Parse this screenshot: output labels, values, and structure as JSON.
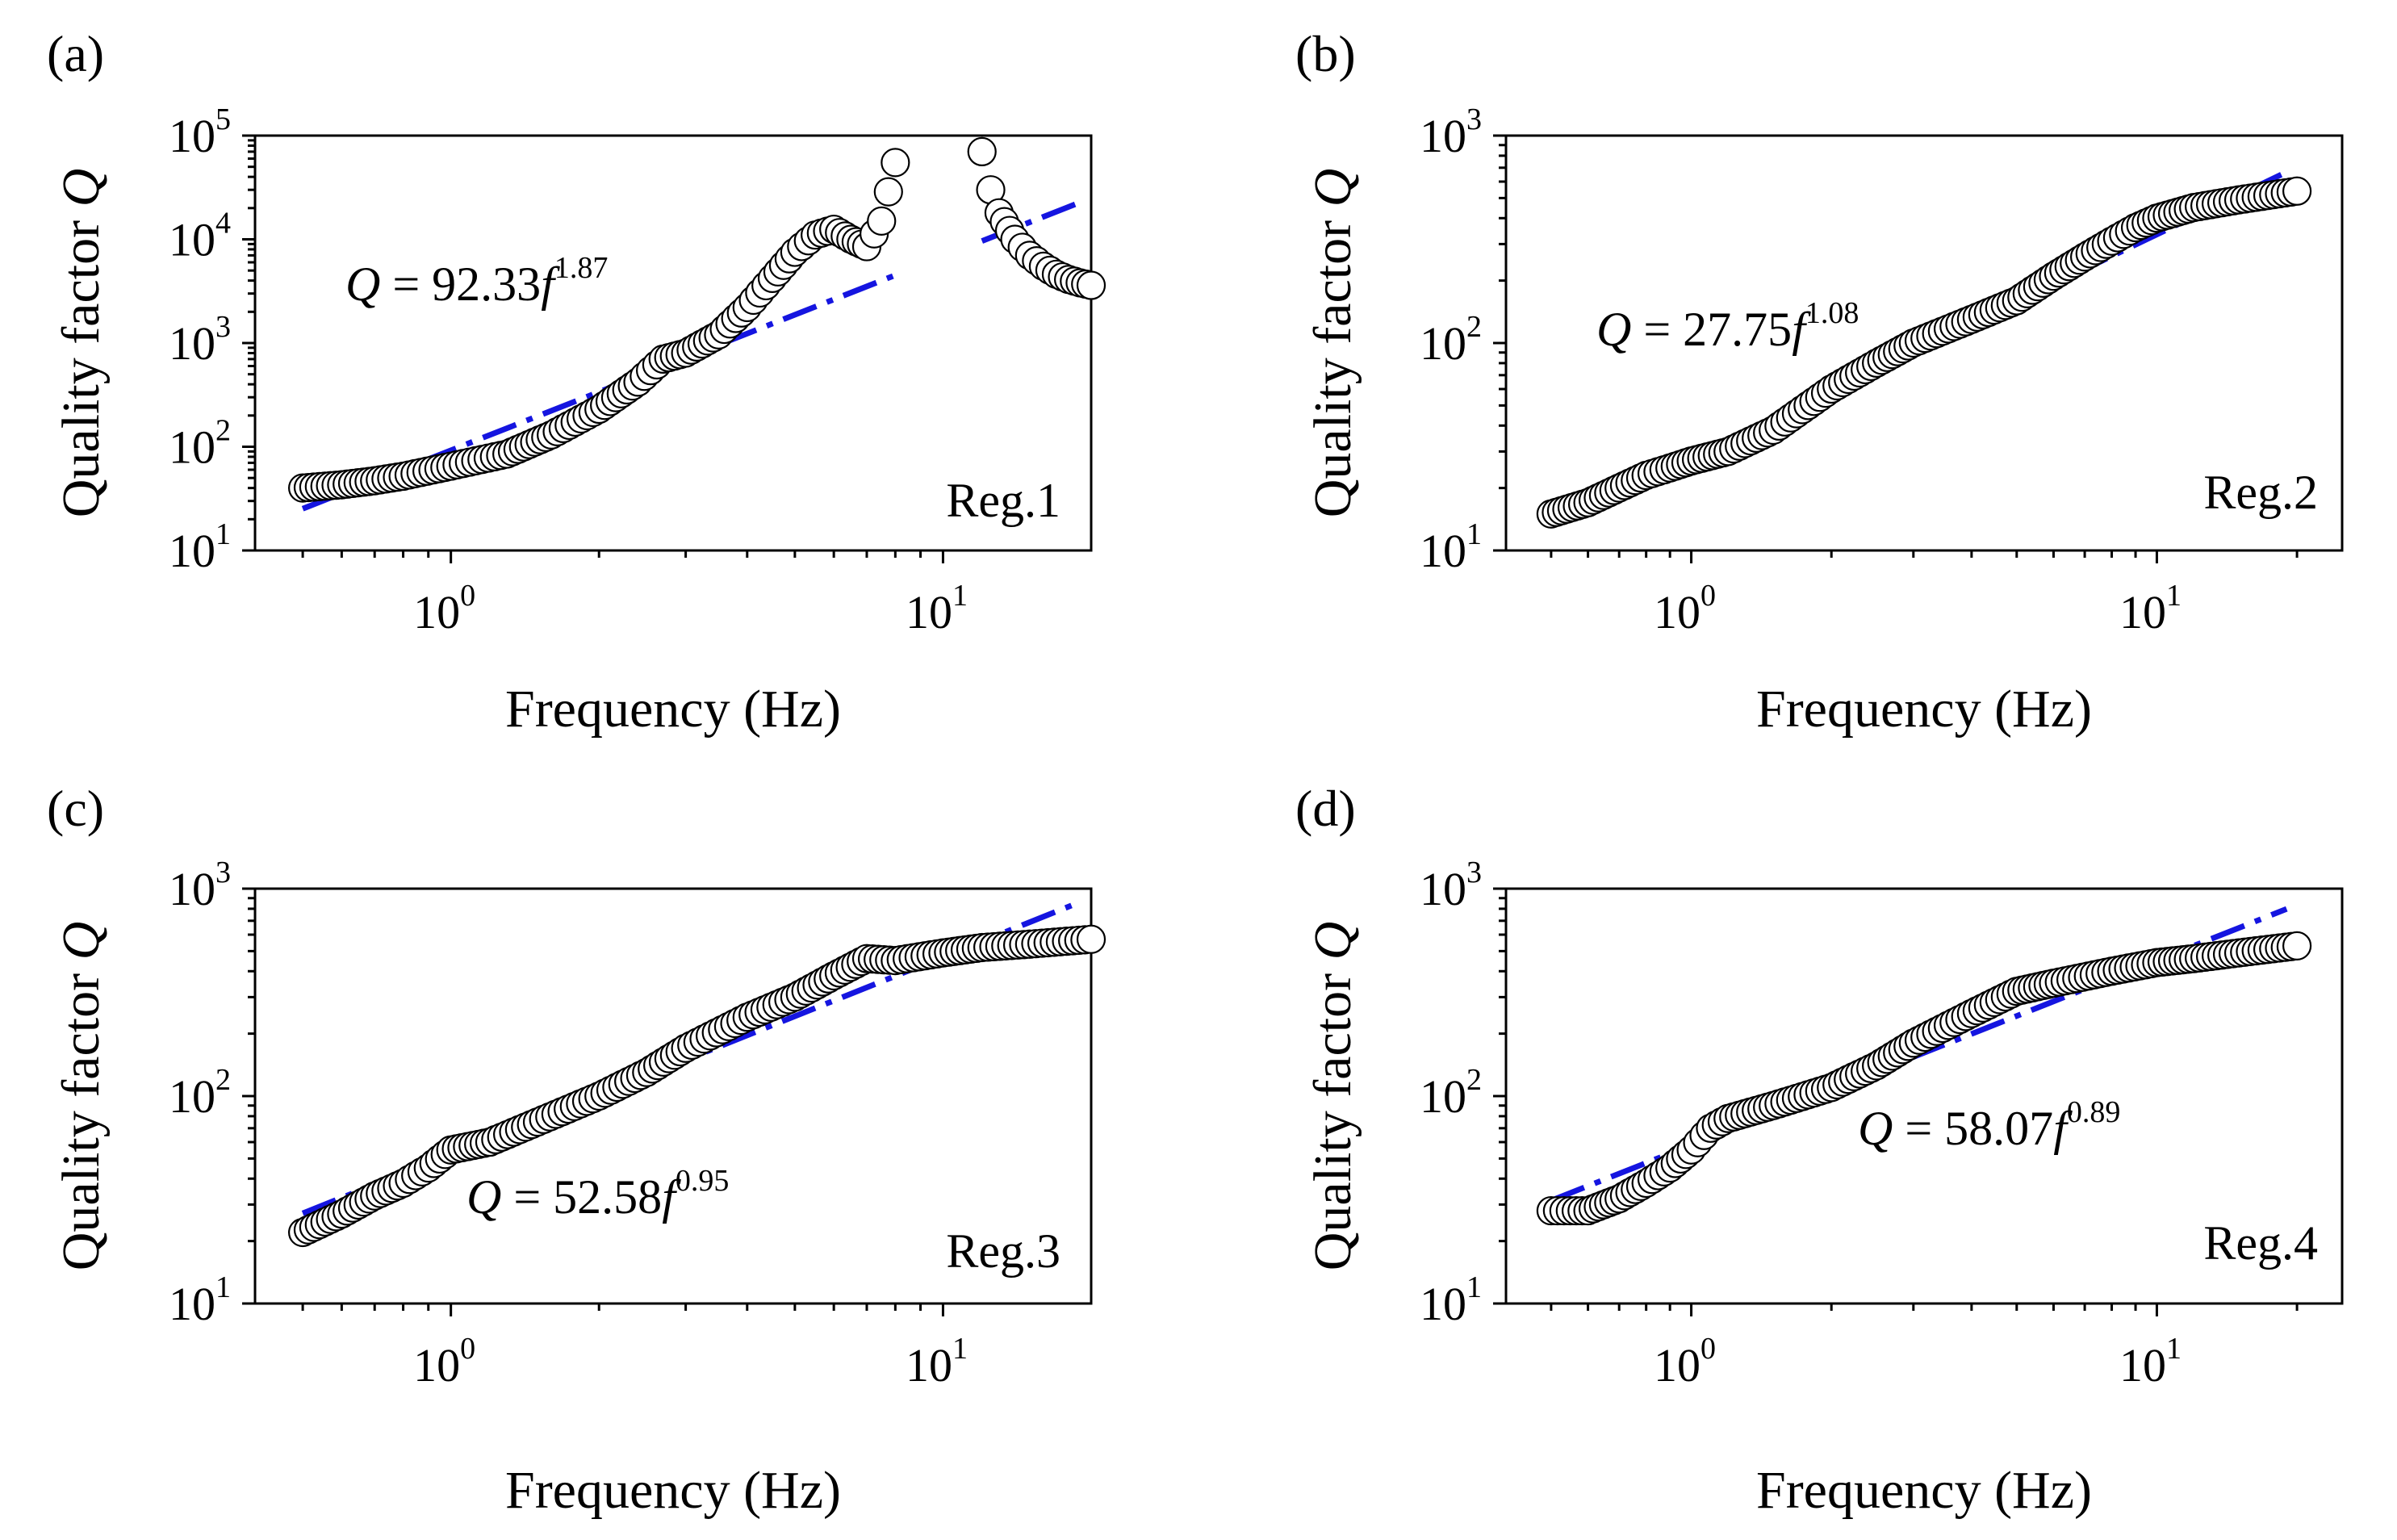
{
  "chart_data": [
    {
      "type": "scatter",
      "panel_label": "(a)",
      "region_label": "Reg.1",
      "xlabel": "Frequency (Hz)",
      "ylabel_prefix": "Quality factor ",
      "ylabel_symbol": "Q",
      "xscale": "log",
      "yscale": "log",
      "xlim": [
        0.4,
        20
      ],
      "ylim": [
        10,
        100000
      ],
      "x_ticks": [
        {
          "v": 1,
          "base": "10",
          "exp": "0"
        },
        {
          "v": 10,
          "base": "10",
          "exp": "1"
        }
      ],
      "y_ticks": [
        {
          "v": 10,
          "base": "10",
          "exp": "1"
        },
        {
          "v": 100,
          "base": "10",
          "exp": "2"
        },
        {
          "v": 1000,
          "base": "10",
          "exp": "3"
        },
        {
          "v": 10000,
          "base": "10",
          "exp": "4"
        },
        {
          "v": 100000,
          "base": "10",
          "exp": "5"
        }
      ],
      "equation": {
        "lhs": "Q",
        "mid": " = 92.33",
        "var": "f",
        "exp": "1.87"
      },
      "fit": {
        "a": 92.33,
        "b": 1.87,
        "segments": [
          [
            0.5,
            8.0
          ],
          [
            12.0,
            19.0
          ]
        ]
      },
      "series": [
        {
          "x": [
            0.5,
            0.6,
            0.7,
            0.8,
            1.0,
            1.3,
            1.6,
            2.0,
            2.4,
            2.7,
            3.0,
            3.5,
            4.0,
            4.5,
            5.0,
            5.5,
            6.0,
            6.5,
            7.0,
            7.5,
            8.0
          ],
          "y": [
            40,
            43,
            47,
            52,
            65,
            85,
            130,
            230,
            420,
            700,
            800,
            1200,
            2200,
            4200,
            7500,
            11000,
            12500,
            10000,
            8500,
            15000,
            55000
          ]
        },
        {
          "x": [
            12.0,
            12.5,
            13.0,
            14.0,
            15.0,
            16.0,
            17.0,
            18.0,
            19.0,
            20.0
          ],
          "y": [
            70000,
            30000,
            18000,
            10000,
            7000,
            5500,
            4600,
            4100,
            3800,
            3600
          ]
        }
      ]
    },
    {
      "type": "scatter",
      "panel_label": "(b)",
      "region_label": "Reg.2",
      "xlabel": "Frequency (Hz)",
      "ylabel_prefix": "Quality factor ",
      "ylabel_symbol": "Q",
      "xscale": "log",
      "yscale": "log",
      "xlim": [
        0.4,
        25
      ],
      "ylim": [
        10,
        1000
      ],
      "x_ticks": [
        {
          "v": 1,
          "base": "10",
          "exp": "0"
        },
        {
          "v": 10,
          "base": "10",
          "exp": "1"
        }
      ],
      "y_ticks": [
        {
          "v": 10,
          "base": "10",
          "exp": "1"
        },
        {
          "v": 100,
          "base": "10",
          "exp": "2"
        },
        {
          "v": 1000,
          "base": "10",
          "exp": "3"
        }
      ],
      "equation": {
        "lhs": "Q",
        "mid": " = 27.75",
        "var": "f",
        "exp": "1.08"
      },
      "fit": {
        "a": 27.75,
        "b": 1.08,
        "segments": [
          [
            0.5,
            19.0
          ]
        ]
      },
      "series": [
        {
          "x": [
            0.5,
            0.6,
            0.7,
            0.8,
            0.9,
            1.0,
            1.2,
            1.5,
            2.0,
            2.5,
            3.0,
            4.0,
            5.0,
            6.0,
            7.0,
            8.0,
            9.0,
            10.0,
            12.0,
            15.0,
            20.0
          ],
          "y": [
            15,
            17,
            20,
            23,
            25,
            27,
            30,
            38,
            60,
            80,
            100,
            130,
            160,
            210,
            260,
            310,
            360,
            400,
            450,
            490,
            540
          ]
        }
      ]
    },
    {
      "type": "scatter",
      "panel_label": "(c)",
      "region_label": "Reg.3",
      "xlabel": "Frequency (Hz)",
      "ylabel_prefix": "Quality factor ",
      "ylabel_symbol": "Q",
      "xscale": "log",
      "yscale": "log",
      "xlim": [
        0.4,
        20
      ],
      "ylim": [
        10,
        1000
      ],
      "x_ticks": [
        {
          "v": 1,
          "base": "10",
          "exp": "0"
        },
        {
          "v": 10,
          "base": "10",
          "exp": "1"
        }
      ],
      "y_ticks": [
        {
          "v": 10,
          "base": "10",
          "exp": "1"
        },
        {
          "v": 100,
          "base": "10",
          "exp": "2"
        },
        {
          "v": 1000,
          "base": "10",
          "exp": "3"
        }
      ],
      "equation": {
        "lhs": "Q",
        "mid": " = 52.58",
        "var": "f",
        "exp": "0.95"
      },
      "fit": {
        "a": 52.58,
        "b": 0.95,
        "segments": [
          [
            0.5,
            19.0
          ]
        ]
      },
      "series": [
        {
          "x": [
            0.5,
            0.6,
            0.7,
            0.8,
            0.9,
            1.0,
            1.2,
            1.5,
            2.0,
            2.5,
            3.0,
            4.0,
            5.0,
            6.0,
            7.0,
            8.0,
            10.0,
            12.0,
            15.0,
            20.0
          ],
          "y": [
            22,
            27,
            33,
            38,
            45,
            55,
            60,
            75,
            100,
            130,
            170,
            240,
            300,
            380,
            460,
            450,
            490,
            520,
            540,
            570
          ]
        }
      ]
    },
    {
      "type": "scatter",
      "panel_label": "(d)",
      "region_label": "Reg.4",
      "xlabel": "Frequency (Hz)",
      "ylabel_prefix": "Quality factor ",
      "ylabel_symbol": "Q",
      "xscale": "log",
      "yscale": "log",
      "xlim": [
        0.4,
        25
      ],
      "ylim": [
        10,
        1000
      ],
      "x_ticks": [
        {
          "v": 1,
          "base": "10",
          "exp": "0"
        },
        {
          "v": 10,
          "base": "10",
          "exp": "1"
        }
      ],
      "y_ticks": [
        {
          "v": 10,
          "base": "10",
          "exp": "1"
        },
        {
          "v": 100,
          "base": "10",
          "exp": "2"
        },
        {
          "v": 1000,
          "base": "10",
          "exp": "3"
        }
      ],
      "equation": {
        "lhs": "Q",
        "mid": " = 58.07",
        "var": "f",
        "exp": "0.89"
      },
      "fit": {
        "a": 58.07,
        "b": 0.89,
        "segments": [
          [
            0.5,
            19.0
          ]
        ]
      },
      "series": [
        {
          "x": [
            0.5,
            0.55,
            0.6,
            0.7,
            0.8,
            0.9,
            1.0,
            1.1,
            1.2,
            1.5,
            2.0,
            2.5,
            3.0,
            4.0,
            5.0,
            6.0,
            8.0,
            10.0,
            12.0,
            15.0,
            20.0
          ],
          "y": [
            28,
            28,
            28,
            32,
            38,
            45,
            55,
            70,
            78,
            90,
            110,
            140,
            180,
            250,
            320,
            350,
            400,
            440,
            460,
            490,
            530
          ]
        }
      ]
    }
  ]
}
